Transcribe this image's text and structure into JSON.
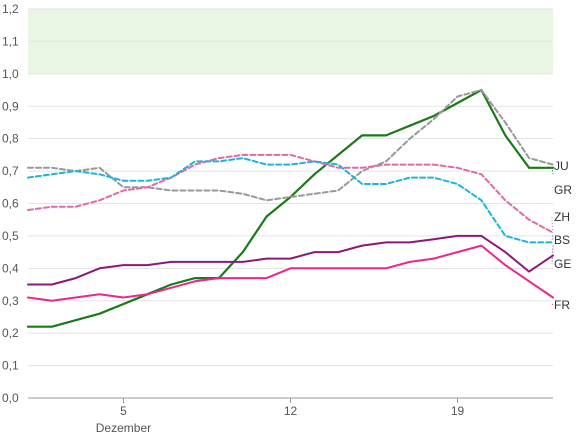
{
  "chart_data": {
    "type": "line",
    "title": "",
    "xlabel": "",
    "ylabel": "",
    "ylim": [
      0,
      1.2
    ],
    "xlim": [
      1,
      23
    ],
    "y_ticks": [
      "0,0",
      "0,1",
      "0,2",
      "0,3",
      "0,4",
      "0,5",
      "0,6",
      "0,7",
      "0,8",
      "0,9",
      "1,0",
      "1,1",
      "1,2"
    ],
    "x_ticks": [
      {
        "value": 5,
        "label": "5",
        "sublabel": "Dezember"
      },
      {
        "value": 12,
        "label": "12",
        "sublabel": ""
      },
      {
        "value": 19,
        "label": "19",
        "sublabel": ""
      }
    ],
    "shaded_band": {
      "from": 1.0,
      "to": 1.2,
      "color": "#eaf6e4"
    },
    "grid": true,
    "legend": "inline labels at right end",
    "x": [
      1,
      2,
      3,
      4,
      5,
      6,
      7,
      8,
      9,
      10,
      11,
      12,
      13,
      14,
      15,
      16,
      17,
      18,
      19,
      20,
      21,
      22,
      23
    ],
    "series": [
      {
        "name": "JU",
        "color": "#1a7a1a",
        "dash": "solid",
        "width": 2.2,
        "values": [
          0.22,
          0.22,
          0.24,
          0.26,
          0.29,
          0.32,
          0.35,
          0.37,
          0.37,
          0.45,
          0.56,
          0.62,
          0.69,
          0.75,
          0.81,
          0.81,
          0.84,
          0.87,
          0.91,
          0.95,
          0.81,
          0.71,
          0.71
        ]
      },
      {
        "name": "GR",
        "color": "#999999",
        "dash": "dashed",
        "width": 2,
        "values": [
          0.71,
          0.71,
          0.7,
          0.71,
          0.65,
          0.65,
          0.64,
          0.64,
          0.64,
          0.63,
          0.61,
          0.62,
          0.63,
          0.64,
          0.7,
          0.73,
          0.8,
          0.86,
          0.93,
          0.95,
          0.85,
          0.74,
          0.72
        ]
      },
      {
        "name": "ZH",
        "color": "#e06aa6",
        "dash": "dashed",
        "width": 2,
        "values": [
          0.58,
          0.59,
          0.59,
          0.61,
          0.64,
          0.65,
          0.68,
          0.72,
          0.74,
          0.75,
          0.75,
          0.75,
          0.73,
          0.71,
          0.71,
          0.72,
          0.72,
          0.72,
          0.71,
          0.69,
          0.61,
          0.55,
          0.51
        ]
      },
      {
        "name": "BS",
        "color": "#1fb3d9",
        "dash": "dashed",
        "width": 2,
        "values": [
          0.68,
          0.69,
          0.7,
          0.69,
          0.67,
          0.67,
          0.68,
          0.73,
          0.73,
          0.74,
          0.72,
          0.72,
          0.73,
          0.72,
          0.66,
          0.66,
          0.68,
          0.68,
          0.66,
          0.61,
          0.5,
          0.48,
          0.48
        ]
      },
      {
        "name": "GE",
        "color": "#8a1a7a",
        "dash": "solid",
        "width": 2,
        "values": [
          0.35,
          0.35,
          0.37,
          0.4,
          0.41,
          0.41,
          0.42,
          0.42,
          0.42,
          0.42,
          0.43,
          0.43,
          0.45,
          0.45,
          0.47,
          0.48,
          0.48,
          0.49,
          0.5,
          0.5,
          0.45,
          0.39,
          0.44
        ]
      },
      {
        "name": "FR",
        "color": "#e8288a",
        "dash": "solid",
        "width": 2,
        "values": [
          0.31,
          0.3,
          0.31,
          0.32,
          0.31,
          0.32,
          0.34,
          0.36,
          0.37,
          0.37,
          0.37,
          0.4,
          0.4,
          0.4,
          0.4,
          0.4,
          0.42,
          0.43,
          0.45,
          0.47,
          0.41,
          0.36,
          0.31
        ]
      }
    ],
    "end_labels": [
      {
        "name": "JU",
        "end": 0.69
      },
      {
        "name": "GR",
        "end": 0.65
      },
      {
        "name": "ZH",
        "end": 0.49
      },
      {
        "name": "BS",
        "end": 0.5
      },
      {
        "name": "GE",
        "end": 0.47
      },
      {
        "name": "FR",
        "end": 0.29
      }
    ]
  }
}
